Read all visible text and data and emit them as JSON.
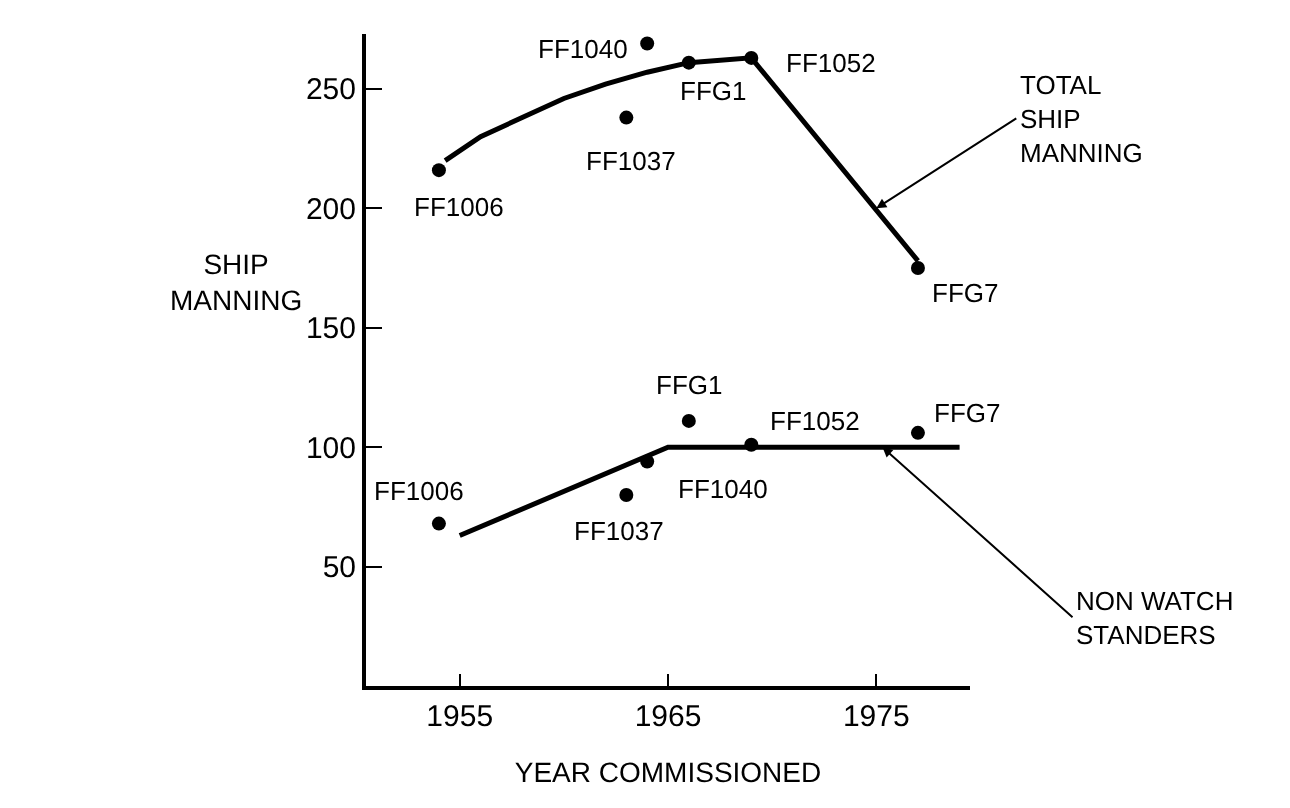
{
  "chart_data": {
    "type": "scatter",
    "xlabel": "YEAR COMMISSIONED",
    "ylabel": "SHIP MANNING",
    "x": [
      1954,
      1963,
      1964,
      1966,
      1969,
      1977
    ],
    "series": [
      {
        "color": "#000000",
        "marker": "circle",
        "values": [
          216,
          238,
          269,
          261,
          263,
          175
        ]
      },
      {
        "type": "line",
        "color": "#000000",
        "marker": "none",
        "x": [
          1954.3,
          1956,
          1958,
          1960,
          1962,
          1964,
          1966,
          1969,
          1977
        ],
        "values": [
          220,
          230,
          238,
          246,
          252,
          257,
          261,
          263,
          178
        ]
      },
      {
        "color": "#000000",
        "marker": "circle",
        "values": [
          68,
          80,
          94,
          111,
          101,
          106
        ]
      },
      {
        "type": "line",
        "color": "#000000",
        "marker": "none",
        "x": [
          1955,
          1965,
          1979
        ],
        "values": [
          63,
          100,
          100
        ]
      }
    ],
    "annotations": [
      {
        "text": "FF1006",
        "x": 1954,
        "y": 216
      },
      {
        "text": "FF1037",
        "x": 1963,
        "y": 238
      },
      {
        "text": "FF1040",
        "x": 1964,
        "y": 269
      },
      {
        "text": "FFG1",
        "x": 1966,
        "y": 261
      },
      {
        "text": "FF1052",
        "x": 1969,
        "y": 263
      },
      {
        "text": "FFG7",
        "x": 1977,
        "y": 175
      },
      {
        "text": "FF1006",
        "x": 1954,
        "y": 68
      },
      {
        "text": "FF1037",
        "x": 1963,
        "y": 80
      },
      {
        "text": "FF1040",
        "x": 1964,
        "y": 94
      },
      {
        "text": "FFG1",
        "x": 1966,
        "y": 111
      },
      {
        "text": "FF1052",
        "x": 1969,
        "y": 101
      },
      {
        "text": "FFG7",
        "x": 1977,
        "y": 106
      },
      {
        "text": "TOTAL\nSHIP\nMANNING",
        "x": 1975,
        "y": 200
      },
      {
        "text": "NON WATCH\nSTANDERS",
        "x": 1975.3,
        "y": 100
      }
    ],
    "xlim": [
      1950.5,
      1979.5
    ],
    "xticks": [
      1955,
      1965,
      1975
    ],
    "ylim": [
      0,
      273
    ],
    "yticks": [
      50,
      100,
      150,
      200,
      250
    ],
    "line_style": "solid"
  }
}
